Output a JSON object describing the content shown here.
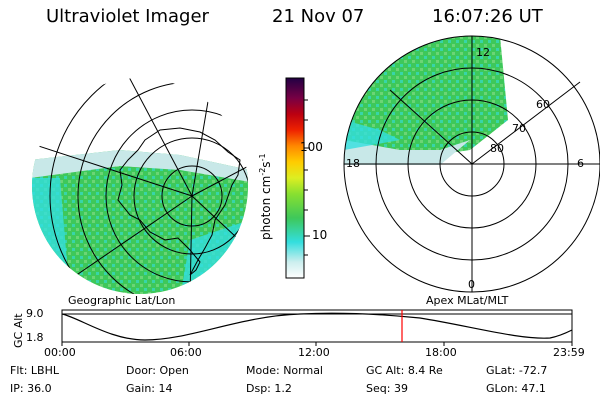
{
  "header": {
    "instrument": "Ultraviolet Imager",
    "date": "21 Nov 07",
    "time": "16:07:26 UT"
  },
  "colorbar": {
    "unit_label": "photon cm",
    "unit_sup1": "-2",
    "unit_s": "s",
    "unit_sup2": "-1",
    "ticks": [
      "100",
      "10"
    ]
  },
  "left_map": {
    "caption": "Geographic Lat/Lon"
  },
  "right_map": {
    "caption": "Apex MLat/MLT",
    "mlt_labels": {
      "top": "12",
      "bottom": "0",
      "left": "18",
      "right": "6"
    },
    "lat_labels": [
      "60",
      "70",
      "80"
    ]
  },
  "altitude_plot": {
    "axis_label": "GC Alt",
    "y_ticks": [
      "9.0",
      "1.8"
    ],
    "x_ticks": [
      "00:00",
      "06:00",
      "12:00",
      "18:00",
      "23:59"
    ]
  },
  "status": {
    "row1": [
      {
        "label": "Flt:",
        "value": "LBHL"
      },
      {
        "label": "Door:",
        "value": "Open"
      },
      {
        "label": "Mode:",
        "value": "Normal"
      },
      {
        "label": "GC Alt:",
        "value": "8.4 Re"
      },
      {
        "label": "GLat:",
        "value": "-72.7"
      }
    ],
    "row2": [
      {
        "label": "IP:",
        "value": "36.0"
      },
      {
        "label": "Gain:",
        "value": "14"
      },
      {
        "label": "Dsp:",
        "value": "1.2"
      },
      {
        "label": "Seq:",
        "value": "39"
      },
      {
        "label": "GLon:",
        "value": "47.1"
      }
    ]
  },
  "colors": {
    "auroral_green": "#3ec85a",
    "auroral_cyan": "#33dede",
    "auroral_light": "#c8e8e8",
    "time_marker": "#ff0000"
  }
}
